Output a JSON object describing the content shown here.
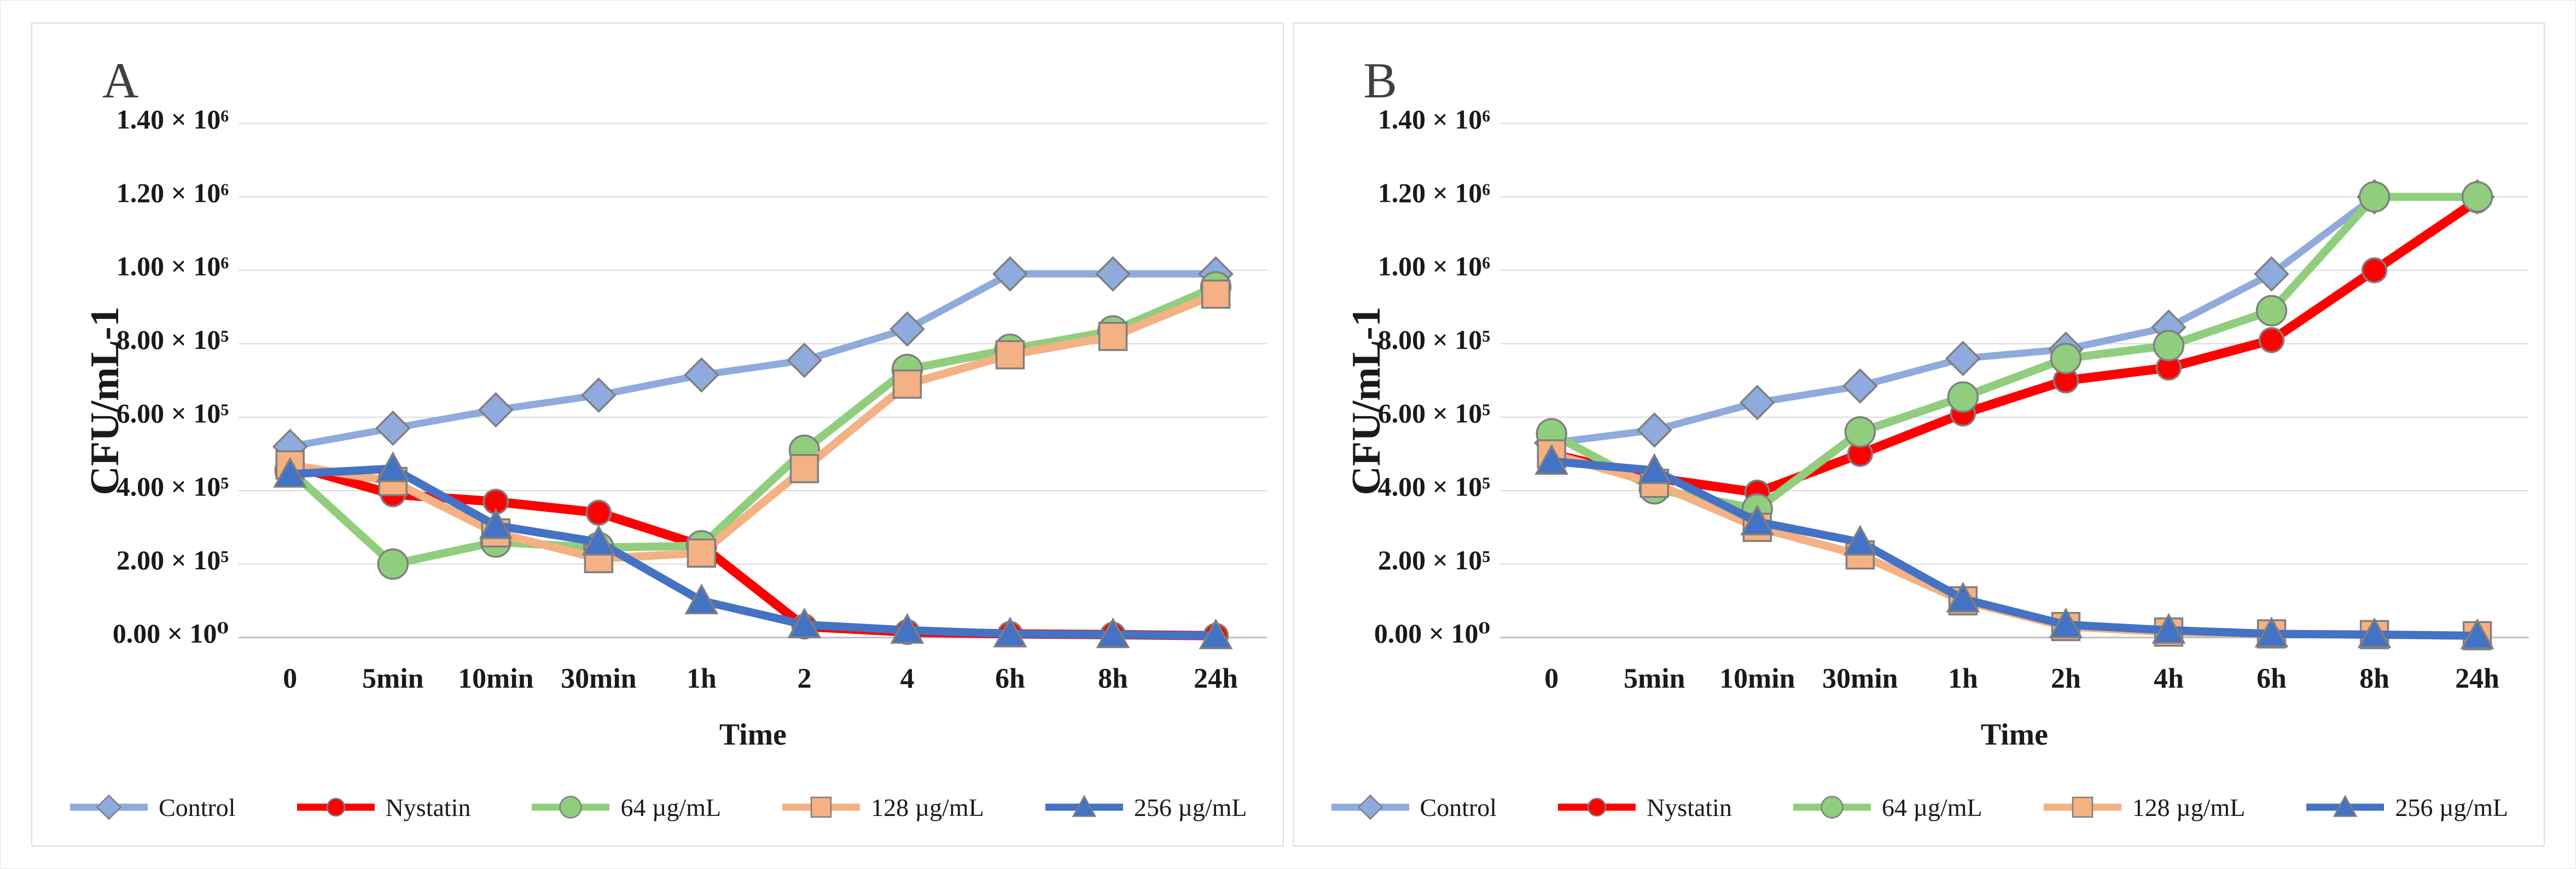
{
  "figure": {
    "type": "two-panel line chart",
    "colors": {
      "control": "#8FAADC",
      "nystatin": "#FF0000",
      "ug64": "#90CE7E",
      "ug128": "#F4B183",
      "ug256": "#4472C4",
      "gridline": "#D9D9D9",
      "axis_line": "#BFBFBF",
      "marker_stroke": "#7F7F7F"
    }
  },
  "chart_data": [
    {
      "type": "line",
      "title": "A",
      "ylabel": "CFU/mL-1",
      "xlabel": "Time",
      "ylim": [
        0,
        1400000
      ],
      "grid": "horizontal",
      "legend_position": "bottom",
      "x_categories": [
        "0",
        "5min",
        "10min",
        "30min",
        "1h",
        "2",
        "4",
        "6h",
        "8h",
        "24h"
      ],
      "y_ticks": [
        {
          "label": "1.40 × 10⁶",
          "value": 1400000
        },
        {
          "label": "1.20 × 10⁶",
          "value": 1200000
        },
        {
          "label": "1.00 × 10⁶",
          "value": 1000000
        },
        {
          "label": "8.00 × 10⁵",
          "value": 800000
        },
        {
          "label": "6.00 × 10⁵",
          "value": 600000
        },
        {
          "label": "4.00 × 10⁵",
          "value": 400000
        },
        {
          "label": "2.00 × 10⁵",
          "value": 200000
        },
        {
          "label": "0.00 × 10⁰",
          "value": 0
        }
      ],
      "series": [
        {
          "name": "Control",
          "key": "control",
          "color": "#8FAADC",
          "marker": "diamond",
          "line_width": 13,
          "values": [
            520000,
            570000,
            620000,
            660000,
            715000,
            755000,
            840000,
            990000,
            990000,
            990000
          ]
        },
        {
          "name": "Nystatin",
          "key": "nystatin",
          "color": "#FF0000",
          "marker": "dot",
          "line_width": 17,
          "values": [
            470000,
            390000,
            370000,
            340000,
            250000,
            30000,
            15000,
            10000,
            8000,
            5000
          ]
        },
        {
          "name": "64 µg/mL",
          "key": "ug64",
          "color": "#90CE7E",
          "marker": "circle",
          "line_width": 15,
          "values": [
            455000,
            200000,
            260000,
            245000,
            250000,
            510000,
            730000,
            785000,
            835000,
            955000
          ]
        },
        {
          "name": "128 µg/mL",
          "key": "ug128",
          "color": "#F4B183",
          "marker": "square",
          "line_width": 15,
          "values": [
            470000,
            425000,
            285000,
            215000,
            230000,
            460000,
            690000,
            770000,
            820000,
            935000
          ]
        },
        {
          "name": "256 µg/mL",
          "key": "ug256",
          "color": "#4472C4",
          "marker": "triangle",
          "line_width": 15,
          "values": [
            445000,
            460000,
            305000,
            260000,
            100000,
            35000,
            20000,
            10000,
            8000,
            5000
          ]
        }
      ]
    },
    {
      "type": "line",
      "title": "B",
      "ylabel": "CFU/mL-1",
      "xlabel": "Time",
      "ylim": [
        0,
        1400000
      ],
      "grid": "horizontal",
      "legend_position": "bottom",
      "x_categories": [
        "0",
        "5min",
        "10min",
        "30min",
        "1h",
        "2h",
        "4h",
        "6h",
        "8h",
        "24h"
      ],
      "y_ticks": [
        {
          "label": "1.40 × 10⁶",
          "value": 1400000
        },
        {
          "label": "1.20 × 10⁶",
          "value": 1200000
        },
        {
          "label": "1.00 × 10⁶",
          "value": 1000000
        },
        {
          "label": "8.00 × 10⁵",
          "value": 800000
        },
        {
          "label": "6.00 × 10⁵",
          "value": 600000
        },
        {
          "label": "4.00 × 10⁵",
          "value": 400000
        },
        {
          "label": "2.00 × 10⁵",
          "value": 200000
        },
        {
          "label": "0.00 × 10⁰",
          "value": 0
        }
      ],
      "series": [
        {
          "name": "Control",
          "key": "control",
          "color": "#8FAADC",
          "marker": "diamond",
          "line_width": 13,
          "values": [
            530000,
            565000,
            640000,
            685000,
            760000,
            785000,
            845000,
            990000,
            1200000,
            1200000
          ]
        },
        {
          "name": "Nystatin",
          "key": "nystatin",
          "color": "#FF0000",
          "marker": "dot",
          "line_width": 17,
          "values": [
            500000,
            435000,
            395000,
            500000,
            610000,
            700000,
            735000,
            810000,
            1000000,
            1190000
          ]
        },
        {
          "name": "64 µg/mL",
          "key": "ug64",
          "color": "#90CE7E",
          "marker": "circle",
          "line_width": 15,
          "values": [
            555000,
            405000,
            350000,
            560000,
            655000,
            760000,
            795000,
            890000,
            1200000,
            1200000
          ]
        },
        {
          "name": "128 µg/mL",
          "key": "ug128",
          "color": "#F4B183",
          "marker": "square",
          "line_width": 15,
          "values": [
            500000,
            420000,
            300000,
            225000,
            100000,
            30000,
            15000,
            10000,
            8000,
            5000
          ]
        },
        {
          "name": "256 µg/mL",
          "key": "ug256",
          "color": "#4472C4",
          "marker": "triangle",
          "line_width": 15,
          "values": [
            480000,
            455000,
            315000,
            260000,
            105000,
            35000,
            20000,
            10000,
            8000,
            5000
          ]
        }
      ]
    }
  ]
}
